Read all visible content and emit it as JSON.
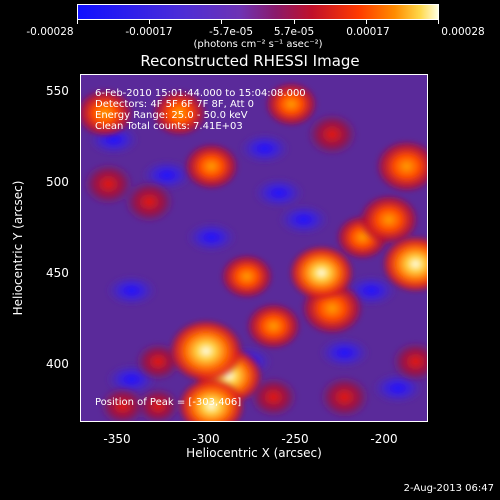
{
  "colorbar": {
    "tick_labels": [
      "-0.00028",
      "-0.00017",
      "-5.7e-05",
      "5.7e-05",
      "0.00017",
      "0.00028"
    ],
    "unit_label": "(photons cm⁻² s⁻¹ asec⁻²)",
    "range": [
      -0.00028,
      0.00028
    ]
  },
  "chart_data": {
    "type": "heatmap",
    "title": "Reconstructed RHESSI Image",
    "xlabel": "Heliocentric X (arcsec)",
    "ylabel": "Heliocentric Y (arcsec)",
    "x_ticks": [
      "-350",
      "-300",
      "-250",
      "-200"
    ],
    "y_ticks": [
      "550",
      "500",
      "450",
      "400"
    ],
    "xlim": [
      -374,
      -178
    ],
    "ylim": [
      366,
      562
    ],
    "annotations": [
      "6-Feb-2010 15:01:44.000 to 15:04:08.000",
      "Detectors: 4F 5F 6F 7F 8F, Att 0",
      "Energy Range: 25.0 - 50.0 keV",
      "Clean    Total counts: 7.41E+03"
    ],
    "peak_label": "Position of Peak = [-303,406]",
    "peak_position": [
      -303,
      406
    ],
    "blobs": [
      {
        "x": -303,
        "y": 406,
        "level": 1.0
      },
      {
        "x": -290,
        "y": 392,
        "level": 0.85
      },
      {
        "x": -238,
        "y": 450,
        "level": 0.8
      },
      {
        "x": -232,
        "y": 430,
        "level": 0.75
      },
      {
        "x": -185,
        "y": 455,
        "level": 0.85
      },
      {
        "x": -190,
        "y": 510,
        "level": 0.75
      },
      {
        "x": -200,
        "y": 480,
        "level": 0.7
      },
      {
        "x": -265,
        "y": 420,
        "level": 0.6
      },
      {
        "x": -280,
        "y": 448,
        "level": 0.55
      },
      {
        "x": -300,
        "y": 510,
        "level": 0.6
      },
      {
        "x": -318,
        "y": 540,
        "level": 0.6
      },
      {
        "x": -360,
        "y": 540,
        "level": 0.65
      },
      {
        "x": -358,
        "y": 500,
        "level": 0.5
      },
      {
        "x": -335,
        "y": 490,
        "level": 0.5
      },
      {
        "x": -255,
        "y": 545,
        "level": 0.55
      },
      {
        "x": -232,
        "y": 528,
        "level": 0.5
      },
      {
        "x": -225,
        "y": 380,
        "level": 0.5
      },
      {
        "x": -185,
        "y": 400,
        "level": 0.45
      },
      {
        "x": -330,
        "y": 400,
        "level": 0.4
      },
      {
        "x": -350,
        "y": 375,
        "level": 0.4
      },
      {
        "x": -265,
        "y": 380,
        "level": 0.45
      },
      {
        "x": -330,
        "y": 375,
        "level": 0.35
      },
      {
        "x": -300,
        "y": 375,
        "level": 0.85
      },
      {
        "x": -215,
        "y": 470,
        "level": 0.55
      }
    ],
    "dips": [
      {
        "x": -325,
        "y": 505
      },
      {
        "x": -345,
        "y": 390
      },
      {
        "x": -270,
        "y": 520
      },
      {
        "x": -225,
        "y": 405
      },
      {
        "x": -248,
        "y": 480
      },
      {
        "x": -210,
        "y": 440
      },
      {
        "x": -195,
        "y": 385
      },
      {
        "x": -280,
        "y": 400
      },
      {
        "x": -345,
        "y": 440
      },
      {
        "x": -300,
        "y": 470
      },
      {
        "x": -262,
        "y": 495
      },
      {
        "x": -355,
        "y": 525
      }
    ]
  },
  "footer": "2-Aug-2013 06:47"
}
